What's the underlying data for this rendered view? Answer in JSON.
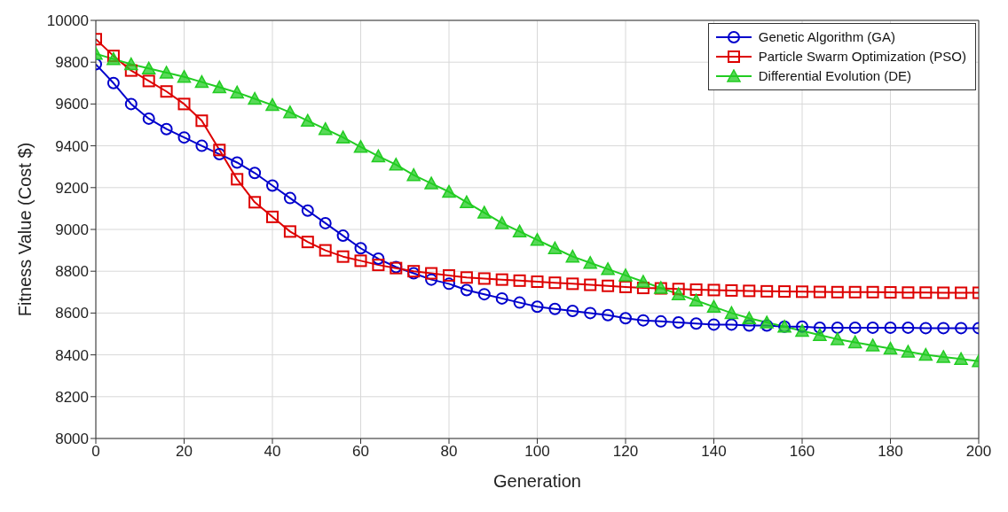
{
  "chart_data": {
    "type": "line",
    "xlabel": "Generation",
    "ylabel": "Fitness Value (Cost $)",
    "x": [
      0,
      4,
      8,
      12,
      16,
      20,
      24,
      28,
      32,
      36,
      40,
      44,
      48,
      52,
      56,
      60,
      64,
      68,
      72,
      76,
      80,
      84,
      88,
      92,
      96,
      100,
      104,
      108,
      112,
      116,
      120,
      124,
      128,
      132,
      136,
      140,
      144,
      148,
      152,
      156,
      160,
      164,
      168,
      172,
      176,
      180,
      184,
      188,
      192,
      196,
      200
    ],
    "series": [
      {
        "name": "Genetic Algorithm (GA)",
        "color": "#0000cc",
        "marker": "circle",
        "values": [
          9790,
          9700,
          9600,
          9530,
          9480,
          9440,
          9400,
          9360,
          9320,
          9270,
          9210,
          9150,
          9090,
          9030,
          8970,
          8910,
          8860,
          8820,
          8790,
          8760,
          8740,
          8710,
          8690,
          8670,
          8650,
          8630,
          8620,
          8610,
          8600,
          8590,
          8575,
          8565,
          8560,
          8555,
          8550,
          8545,
          8545,
          8540,
          8540,
          8535,
          8535,
          8530,
          8530,
          8530,
          8530,
          8530,
          8530,
          8528,
          8528,
          8528,
          8528
        ]
      },
      {
        "name": "Particle Swarm Optimization (PSO)",
        "color": "#dd0000",
        "marker": "square",
        "values": [
          9910,
          9830,
          9760,
          9710,
          9660,
          9600,
          9520,
          9380,
          9240,
          9130,
          9060,
          8990,
          8940,
          8900,
          8870,
          8850,
          8830,
          8815,
          8800,
          8790,
          8780,
          8770,
          8765,
          8760,
          8755,
          8750,
          8745,
          8740,
          8735,
          8730,
          8725,
          8720,
          8718,
          8715,
          8712,
          8710,
          8708,
          8706,
          8704,
          8703,
          8702,
          8701,
          8700,
          8700,
          8700,
          8699,
          8698,
          8698,
          8697,
          8697,
          8697
        ]
      },
      {
        "name": "Differential Evolution (DE)",
        "color": "#22cc22",
        "marker": "triangle",
        "values": [
          9840,
          9815,
          9790,
          9770,
          9750,
          9730,
          9705,
          9680,
          9655,
          9625,
          9595,
          9560,
          9520,
          9480,
          9440,
          9395,
          9350,
          9310,
          9260,
          9220,
          9180,
          9130,
          9080,
          9030,
          8990,
          8950,
          8910,
          8870,
          8840,
          8810,
          8780,
          8750,
          8720,
          8690,
          8660,
          8630,
          8600,
          8575,
          8555,
          8535,
          8515,
          8495,
          8475,
          8460,
          8445,
          8430,
          8415,
          8400,
          8390,
          8380,
          8370
        ]
      }
    ],
    "xlim": [
      0,
      200
    ],
    "xticks": [
      0,
      20,
      40,
      60,
      80,
      100,
      120,
      140,
      160,
      180,
      200
    ],
    "ylim": [
      8000,
      10000
    ],
    "yticks": [
      8000,
      8200,
      8400,
      8600,
      8800,
      9000,
      9200,
      9400,
      9600,
      9800,
      10000
    ],
    "grid": true,
    "legend": "top right",
    "line_style": "solid"
  }
}
